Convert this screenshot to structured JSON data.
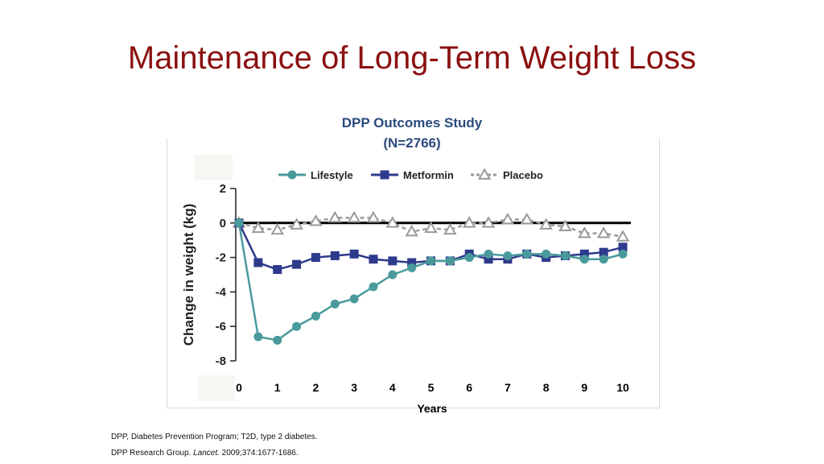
{
  "slide": {
    "title": "Maintenance of Long-Term Weight Loss"
  },
  "chart_heading": {
    "line1": "DPP Outcomes Study",
    "line2": "(N=2766)"
  },
  "footnotes": {
    "abbreviations": "DPP, Diabetes Prevention Program; T2D, type 2 diabetes.",
    "reference_prefix": "DPP Research Group. ",
    "reference_journal": "Lancet.",
    "reference_suffix": " 2009;374:1677-1686."
  },
  "chart_data": {
    "type": "line",
    "xlabel": "Years",
    "ylabel": "Change in weight (kg)",
    "xlim": [
      0,
      10
    ],
    "ylim": [
      -8,
      2
    ],
    "x_ticks": [
      "0",
      "1",
      "2",
      "3",
      "4",
      "5",
      "6",
      "7",
      "8",
      "9",
      "10"
    ],
    "y_ticks": [
      "2",
      "0",
      "-2",
      "-4",
      "-6",
      "-8"
    ],
    "legend_position": "top",
    "reference_line_y": 0,
    "x": [
      0,
      0.5,
      1,
      1.5,
      2,
      2.5,
      3,
      3.5,
      4,
      4.5,
      5,
      5.5,
      6,
      6.5,
      7,
      7.5,
      8,
      8.5,
      9,
      9.5,
      10
    ],
    "series": [
      {
        "name": "Lifestyle",
        "color": "#4a9a9c",
        "marker": "circle",
        "line_style": "solid",
        "values": [
          0,
          -6.6,
          -6.8,
          -6.0,
          -5.4,
          -4.7,
          -4.4,
          -3.7,
          -3.0,
          -2.6,
          -2.2,
          -2.2,
          -2.0,
          -1.8,
          -1.9,
          -1.8,
          -1.8,
          -1.9,
          -2.1,
          -2.1,
          -1.8
        ]
      },
      {
        "name": "Metformin",
        "color": "#2e3a8c",
        "marker": "square",
        "line_style": "solid",
        "values": [
          0,
          -2.3,
          -2.7,
          -2.4,
          -2.0,
          -1.9,
          -1.8,
          -2.1,
          -2.2,
          -2.3,
          -2.2,
          -2.2,
          -1.8,
          -2.1,
          -2.1,
          -1.8,
          -2.0,
          -1.9,
          -1.8,
          -1.7,
          -1.4
        ]
      },
      {
        "name": "Placebo",
        "color": "#9a9a9a",
        "marker": "triangle",
        "line_style": "dashed",
        "values": [
          0,
          -0.3,
          -0.4,
          -0.1,
          0.1,
          0.3,
          0.3,
          0.3,
          0.0,
          -0.5,
          -0.3,
          -0.4,
          0.0,
          0.0,
          0.2,
          0.2,
          -0.1,
          -0.2,
          -0.6,
          -0.6,
          -0.8
        ]
      }
    ]
  }
}
